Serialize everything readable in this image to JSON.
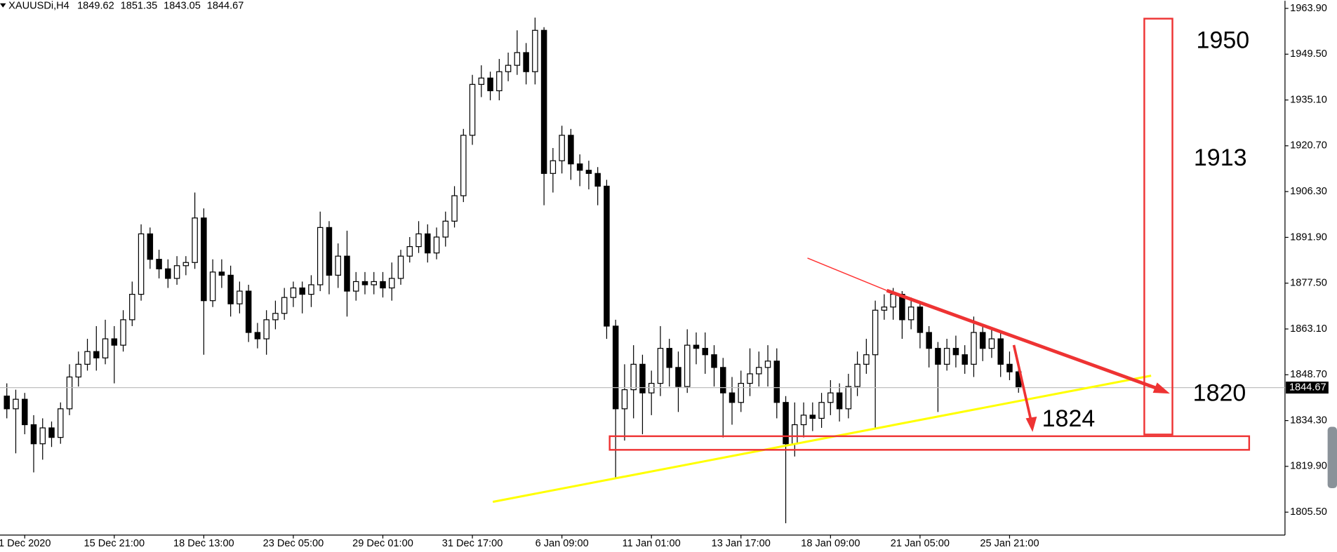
{
  "chart_data": {
    "type": "candlestick",
    "symbol": "XAUUSDi,H4",
    "categories": [
      null,
      null,
      "1 Dec 2020",
      null,
      null,
      null,
      null,
      null,
      null,
      null,
      null,
      null,
      "15 Dec 21:00",
      null,
      null,
      null,
      null,
      null,
      null,
      null,
      null,
      null,
      "18 Dec 13:00",
      null,
      null,
      null,
      null,
      null,
      null,
      null,
      null,
      null,
      "23 Dec 05:00",
      null,
      null,
      null,
      null,
      null,
      null,
      null,
      null,
      null,
      "29 Dec 01:00",
      null,
      null,
      null,
      null,
      null,
      null,
      null,
      null,
      null,
      "31 Dec 17:00",
      null,
      null,
      null,
      null,
      null,
      null,
      null,
      null,
      null,
      "6 Jan 09:00",
      null,
      null,
      null,
      null,
      null,
      null,
      null,
      null,
      null,
      "11 Jan 01:00",
      null,
      null,
      null,
      null,
      null,
      null,
      null,
      null,
      null,
      "13 Jan 17:00",
      null,
      null,
      null,
      null,
      null,
      null,
      null,
      null,
      null,
      "18 Jan 09:00",
      null,
      null,
      null,
      null,
      null,
      null,
      null,
      null,
      null,
      "21 Jan 05:00",
      null,
      null,
      null,
      null,
      null,
      null,
      null,
      null,
      null,
      "25 Jan 21:00",
      null
    ],
    "ohlc": [
      [
        1842,
        1846,
        1835,
        1838
      ],
      [
        1838,
        1844,
        1824,
        1841
      ],
      [
        1841,
        1843,
        1830,
        1833
      ],
      [
        1833,
        1836,
        1818,
        1827
      ],
      [
        1827,
        1835,
        1822,
        1832
      ],
      [
        1832,
        1834,
        1826,
        1829
      ],
      [
        1829,
        1840,
        1827,
        1838
      ],
      [
        1838,
        1852,
        1836,
        1848
      ],
      [
        1848,
        1856,
        1845,
        1852
      ],
      [
        1852,
        1860,
        1850,
        1856
      ],
      [
        1856,
        1864,
        1850,
        1854
      ],
      [
        1854,
        1866,
        1852,
        1860
      ],
      [
        1860,
        1864,
        1846,
        1858
      ],
      [
        1858,
        1869,
        1856,
        1866
      ],
      [
        1866,
        1878,
        1864,
        1874
      ],
      [
        1874,
        1896,
        1872,
        1893
      ],
      [
        1893,
        1895,
        1882,
        1885
      ],
      [
        1885,
        1888,
        1879,
        1882
      ],
      [
        1882,
        1885,
        1876,
        1879
      ],
      [
        1879,
        1886,
        1877,
        1883
      ],
      [
        1883,
        1886,
        1880,
        1884
      ],
      [
        1884,
        1906,
        1882,
        1898
      ],
      [
        1898,
        1901,
        1855,
        1872
      ],
      [
        1872,
        1885,
        1870,
        1881
      ],
      [
        1881,
        1885,
        1876,
        1880
      ],
      [
        1880,
        1883,
        1867,
        1871
      ],
      [
        1871,
        1878,
        1868,
        1875
      ],
      [
        1875,
        1877,
        1859,
        1862
      ],
      [
        1862,
        1865,
        1857,
        1860
      ],
      [
        1860,
        1869,
        1855,
        1866
      ],
      [
        1866,
        1872,
        1863,
        1868
      ],
      [
        1868,
        1876,
        1866,
        1873
      ],
      [
        1873,
        1878,
        1870,
        1876
      ],
      [
        1876,
        1878,
        1868,
        1874
      ],
      [
        1874,
        1880,
        1870,
        1877
      ],
      [
        1877,
        1900,
        1875,
        1895
      ],
      [
        1895,
        1897,
        1874,
        1880
      ],
      [
        1880,
        1890,
        1876,
        1886
      ],
      [
        1886,
        1894,
        1867,
        1875
      ],
      [
        1875,
        1881,
        1872,
        1878
      ],
      [
        1878,
        1881,
        1874,
        1877
      ],
      [
        1877,
        1881,
        1874,
        1878
      ],
      [
        1878,
        1881,
        1873,
        1876
      ],
      [
        1876,
        1884,
        1872,
        1879
      ],
      [
        1879,
        1888,
        1877,
        1886
      ],
      [
        1886,
        1892,
        1884,
        1889
      ],
      [
        1889,
        1897,
        1887,
        1893
      ],
      [
        1893,
        1896,
        1884,
        1887
      ],
      [
        1887,
        1895,
        1885,
        1892
      ],
      [
        1892,
        1900,
        1889,
        1897
      ],
      [
        1897,
        1908,
        1895,
        1905
      ],
      [
        1905,
        1926,
        1903,
        1924
      ],
      [
        1924,
        1943,
        1921,
        1940
      ],
      [
        1940,
        1946,
        1936,
        1942
      ],
      [
        1942,
        1944,
        1935,
        1938
      ],
      [
        1938,
        1948,
        1935,
        1944
      ],
      [
        1944,
        1950,
        1941,
        1946
      ],
      [
        1946,
        1957,
        1943,
        1950
      ],
      [
        1950,
        1953,
        1940,
        1944
      ],
      [
        1944,
        1961,
        1940,
        1957
      ],
      [
        1957,
        1958,
        1902,
        1912
      ],
      [
        1912,
        1920,
        1906,
        1916
      ],
      [
        1916,
        1927,
        1912,
        1924
      ],
      [
        1924,
        1926,
        1910,
        1915
      ],
      [
        1915,
        1918,
        1908,
        1913
      ],
      [
        1913,
        1916,
        1907,
        1912
      ],
      [
        1912,
        1914,
        1902,
        1908
      ],
      [
        1908,
        1910,
        1860,
        1864
      ],
      [
        1864,
        1866,
        1816,
        1838
      ],
      [
        1838,
        1852,
        1828,
        1844
      ],
      [
        1844,
        1858,
        1835,
        1852
      ],
      [
        1852,
        1855,
        1830,
        1843
      ],
      [
        1843,
        1850,
        1836,
        1846
      ],
      [
        1846,
        1864,
        1842,
        1857
      ],
      [
        1857,
        1860,
        1845,
        1851
      ],
      [
        1851,
        1856,
        1837,
        1845
      ],
      [
        1845,
        1863,
        1843,
        1858
      ],
      [
        1858,
        1862,
        1852,
        1857
      ],
      [
        1857,
        1862,
        1849,
        1855
      ],
      [
        1855,
        1858,
        1845,
        1851
      ],
      [
        1851,
        1854,
        1829,
        1843
      ],
      [
        1843,
        1848,
        1833,
        1840
      ],
      [
        1840,
        1850,
        1837,
        1846
      ],
      [
        1846,
        1857,
        1842,
        1849
      ],
      [
        1849,
        1856,
        1845,
        1851
      ],
      [
        1851,
        1858,
        1845,
        1853
      ],
      [
        1853,
        1857,
        1835,
        1840
      ],
      [
        1840,
        1842,
        1802,
        1827
      ],
      [
        1827,
        1840,
        1823,
        1833
      ],
      [
        1833,
        1840,
        1829,
        1836
      ],
      [
        1836,
        1840,
        1831,
        1835
      ],
      [
        1835,
        1843,
        1832,
        1840
      ],
      [
        1840,
        1847,
        1836,
        1843
      ],
      [
        1843,
        1846,
        1834,
        1838
      ],
      [
        1838,
        1849,
        1835,
        1845
      ],
      [
        1845,
        1856,
        1842,
        1852
      ],
      [
        1852,
        1860,
        1849,
        1855
      ],
      [
        1855,
        1872,
        1832,
        1869
      ],
      [
        1869,
        1874,
        1866,
        1870
      ],
      [
        1870,
        1876,
        1866,
        1874
      ],
      [
        1874,
        1875,
        1860,
        1866
      ],
      [
        1866,
        1873,
        1863,
        1870
      ],
      [
        1870,
        1871,
        1857,
        1862
      ],
      [
        1862,
        1864,
        1851,
        1857
      ],
      [
        1857,
        1859,
        1837,
        1852
      ],
      [
        1852,
        1860,
        1850,
        1857
      ],
      [
        1857,
        1861,
        1851,
        1855
      ],
      [
        1855,
        1858,
        1849,
        1852
      ],
      [
        1852,
        1867,
        1848,
        1862
      ],
      [
        1862,
        1864,
        1853,
        1857
      ],
      [
        1857,
        1863,
        1854,
        1860
      ],
      [
        1860,
        1862,
        1848,
        1852
      ],
      [
        1852,
        1856,
        1847,
        1849.62
      ],
      [
        1849.62,
        1851.35,
        1843.05,
        1844.67
      ]
    ],
    "ylim": [
      1798.3,
      1966.3
    ],
    "yticks": [
      {
        "value": 1963.9,
        "label": "1963.90"
      },
      {
        "value": 1949.5,
        "label": "1949.50"
      },
      {
        "value": 1935.1,
        "label": "1935.10"
      },
      {
        "value": 1920.7,
        "label": "1920.70"
      },
      {
        "value": 1906.3,
        "label": "1906.30"
      },
      {
        "value": 1891.9,
        "label": "1891.90"
      },
      {
        "value": 1877.5,
        "label": "1877.50"
      },
      {
        "value": 1863.1,
        "label": "1863.10"
      },
      {
        "value": 1848.7,
        "label": "1848.70"
      },
      {
        "value": 1834.3,
        "label": "1834.30"
      },
      {
        "value": 1819.9,
        "label": "1819.90"
      },
      {
        "value": 1805.5,
        "label": "1805.50"
      }
    ],
    "up_color": "#ffffff",
    "down_color": "#000000",
    "outline_color": "#000000",
    "annotations": [
      {
        "text": "1950"
      },
      {
        "text": "1913"
      },
      {
        "text": "1820"
      },
      {
        "text": "1824"
      }
    ]
  }
}
